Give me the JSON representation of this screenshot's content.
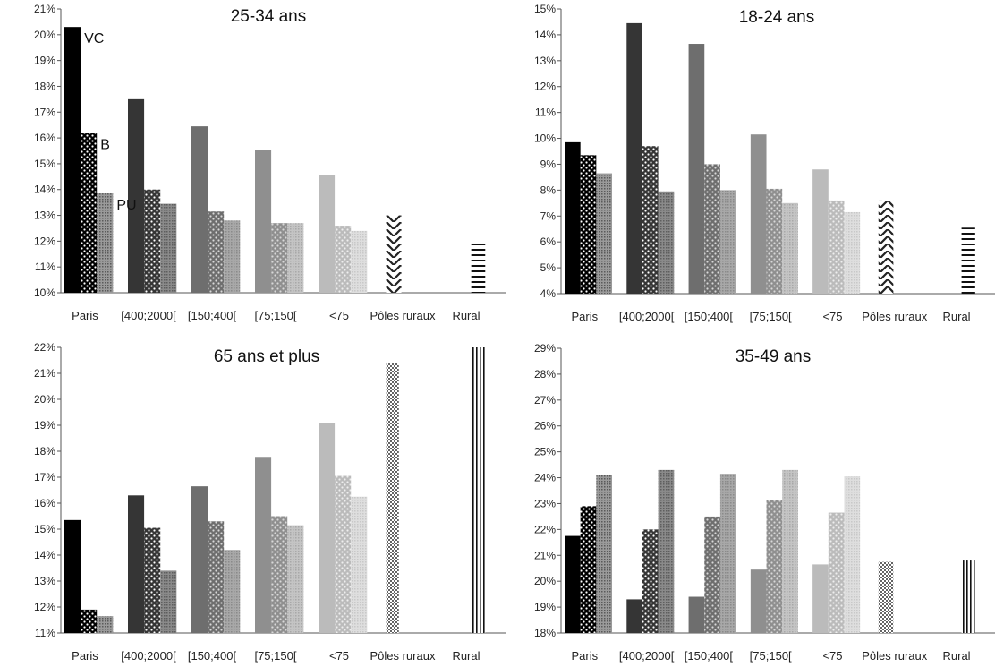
{
  "chart_data": [
    {
      "type": "bar",
      "title": "25-34 ans",
      "categories": [
        "Paris",
        "[400;2000[",
        "[150;400[",
        "[75;150[",
        "<75",
        "Pôles ruraux",
        "Rural"
      ],
      "yticks": [
        "10%",
        "11%",
        "12%",
        "13%",
        "14%",
        "15%",
        "16%",
        "17%",
        "18%",
        "19%",
        "20%",
        "21%"
      ],
      "ylim": [
        10,
        21
      ],
      "series": [
        {
          "values": [
            20.3,
            17.5,
            16.45,
            15.55,
            14.55,
            13.0,
            12.0
          ]
        },
        {
          "values": [
            16.2,
            14.0,
            13.15,
            12.7,
            12.6,
            null,
            null
          ]
        },
        {
          "values": [
            13.85,
            13.45,
            12.8,
            12.7,
            12.4,
            null,
            null
          ]
        }
      ],
      "annotations": [
        {
          "text": "VC",
          "series": 0,
          "category": 0
        },
        {
          "text": "B",
          "series": 1,
          "category": 0
        },
        {
          "text": "PU",
          "series": 2,
          "category": 0
        }
      ],
      "grid": false
    },
    {
      "type": "bar",
      "title": "18-24 ans",
      "categories": [
        "Paris",
        "[400;2000[",
        "[150;400[",
        "[75;150[",
        "<75",
        "Pôles ruraux",
        "Rural"
      ],
      "yticks": [
        "4%",
        "5%",
        "6%",
        "7%",
        "8%",
        "9%",
        "10%",
        "11%",
        "12%",
        "13%",
        "14%",
        "15%"
      ],
      "ylim": [
        4,
        15
      ],
      "series": [
        {
          "values": [
            9.85,
            14.45,
            13.65,
            10.15,
            8.8,
            7.6,
            6.55
          ]
        },
        {
          "values": [
            9.35,
            9.7,
            9.0,
            8.05,
            7.6,
            null,
            null
          ]
        },
        {
          "values": [
            8.65,
            7.95,
            8.0,
            7.5,
            7.15,
            null,
            null
          ]
        }
      ],
      "grid": false
    },
    {
      "type": "bar",
      "title": "65 ans et plus",
      "categories": [
        "Paris",
        "[400;2000[",
        "[150;400[",
        "[75;150[",
        "<75",
        "Pôles ruraux",
        "Rural"
      ],
      "yticks": [
        "11%",
        "12%",
        "13%",
        "14%",
        "15%",
        "16%",
        "17%",
        "18%",
        "19%",
        "20%",
        "21%",
        "22%"
      ],
      "ylim": [
        11,
        22
      ],
      "series": [
        {
          "values": [
            15.35,
            16.3,
            16.65,
            17.75,
            19.1,
            21.4,
            22.0
          ]
        },
        {
          "values": [
            11.9,
            15.05,
            15.3,
            15.5,
            17.05,
            null,
            null
          ]
        },
        {
          "values": [
            11.65,
            13.4,
            14.2,
            15.15,
            16.25,
            null,
            null
          ]
        }
      ],
      "grid": false
    },
    {
      "type": "bar",
      "title": "35-49 ans",
      "categories": [
        "Paris",
        "[400;2000[",
        "[150;400[",
        "[75;150[",
        "<75",
        "Pôles ruraux",
        "Rural"
      ],
      "yticks": [
        "18%",
        "19%",
        "20%",
        "21%",
        "22%",
        "23%",
        "24%",
        "25%",
        "26%",
        "27%",
        "28%",
        "29%"
      ],
      "ylim": [
        18,
        29
      ],
      "series": [
        {
          "values": [
            21.75,
            19.3,
            19.4,
            20.45,
            20.65,
            20.75,
            20.8
          ]
        },
        {
          "values": [
            22.9,
            22.0,
            22.5,
            23.15,
            22.65,
            null,
            null
          ]
        },
        {
          "values": [
            24.1,
            24.3,
            24.15,
            24.3,
            24.05,
            null,
            null
          ]
        }
      ],
      "grid": false
    }
  ],
  "colors": {
    "shades": [
      "#000000",
      "#353535",
      "#6e6e6e",
      "#8f8f8f",
      "#bbbbbb"
    ],
    "background": "#ffffff",
    "axis": "#555555"
  }
}
